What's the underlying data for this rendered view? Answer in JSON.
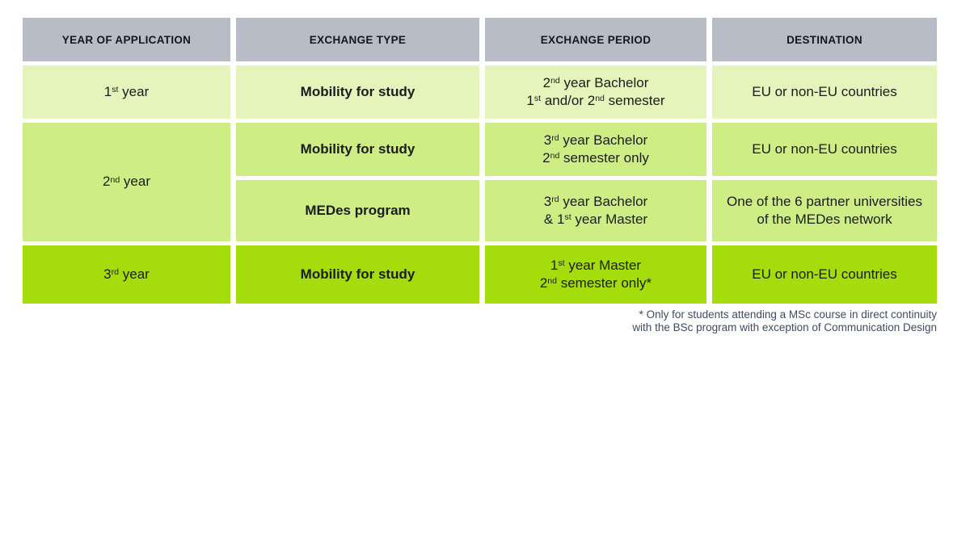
{
  "colors": {
    "header_bg": "#b7bcc6",
    "header_text": "#16161d",
    "row1_bg": "#e4f4ba",
    "row2_bg": "#ceed84",
    "row3_bg": "#a5dc0c",
    "body_text": "#1c1c1c",
    "footnote_text": "#3e4c61"
  },
  "table": {
    "headers": {
      "year": "YEAR OF APPLICATION",
      "type": "EXCHANGE TYPE",
      "period": "EXCHANGE PERIOD",
      "destination": "DESTINATION"
    },
    "rows": {
      "r1": {
        "year": "1^{st} year",
        "type": "Mobility for study",
        "period": "2^{nd} year Bachelor\n1^{st} and/or 2^{nd} semester",
        "destination": "EU or non-EU countries"
      },
      "r2": {
        "year": "2^{nd} year",
        "a": {
          "type": "Mobility for study",
          "period": "3^{rd} year Bachelor\n2^{nd} semester only",
          "destination": "EU or non-EU countries"
        },
        "b": {
          "type": "MEDes program",
          "period": "3^{rd} year Bachelor\n& 1^{st} year Master",
          "destination": "One of the 6 partner universities\nof the MEDes network"
        }
      },
      "r3": {
        "year": "3^{rd} year",
        "type": "Mobility for study",
        "period": "1^{st} year Master\n2^{nd} semester only*",
        "destination": "EU or non-EU countries"
      }
    }
  },
  "footnote": "* Only for students attending a MSc course in direct continuity\nwith the BSc program with exception of Communication Design"
}
